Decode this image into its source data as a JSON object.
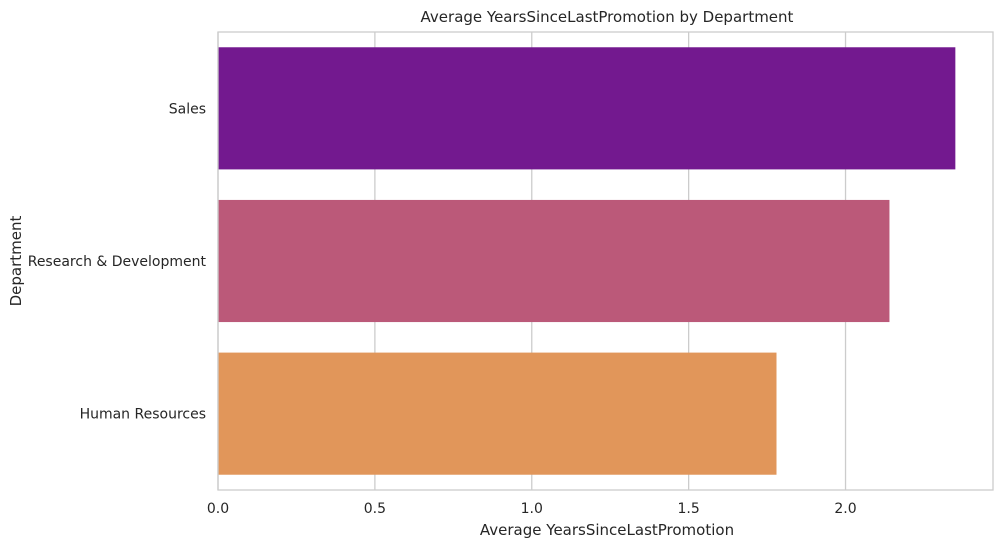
{
  "chart_data": {
    "type": "bar",
    "orientation": "horizontal",
    "title": "Average YearsSinceLastPromotion by Department",
    "xlabel": "Average YearsSinceLastPromotion",
    "ylabel": "Department",
    "categories": [
      "Sales",
      "Research & Development",
      "Human Resources"
    ],
    "values": [
      2.35,
      2.14,
      1.78
    ],
    "colors": [
      "#73198f",
      "#bb5979",
      "#e1965a"
    ],
    "xlim": [
      0,
      2.47
    ],
    "xticks": [
      0.0,
      0.5,
      1.0,
      1.5,
      2.0
    ],
    "xtick_labels": [
      "0.0",
      "0.5",
      "1.0",
      "1.5",
      "2.0"
    ],
    "grid": true,
    "grid_color": "#cccccc",
    "spine_color": "#cccccc",
    "legend": "none"
  }
}
